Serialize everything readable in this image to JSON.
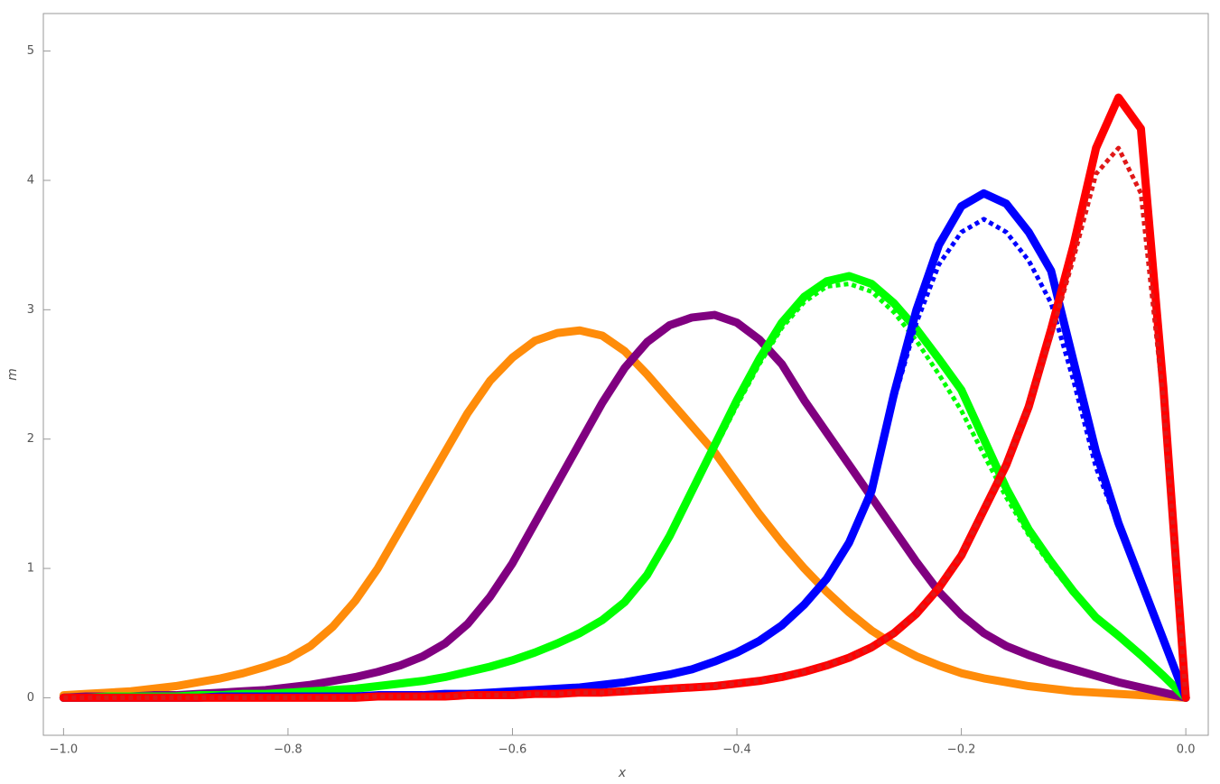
{
  "chart_data": {
    "type": "line",
    "x_label": "x",
    "y_label": "m",
    "xlim": [
      -1.018,
      0.02
    ],
    "ylim": [
      -0.29,
      5.29
    ],
    "xticks": [
      {
        "value": -1.0,
        "label": "−1.0"
      },
      {
        "value": -0.8,
        "label": "−0.8"
      },
      {
        "value": -0.6,
        "label": "−0.6"
      },
      {
        "value": -0.4,
        "label": "−0.4"
      },
      {
        "value": -0.2,
        "label": "−0.2"
      },
      {
        "value": 0.0,
        "label": "0.0"
      }
    ],
    "yticks": [
      0,
      1,
      2,
      3,
      4,
      5
    ],
    "x": [
      -1,
      -0.98,
      -0.96,
      -0.94,
      -0.92,
      -0.9,
      -0.88,
      -0.86,
      -0.84,
      -0.82,
      -0.8,
      -0.78,
      -0.76,
      -0.74,
      -0.72,
      -0.7,
      -0.68,
      -0.66,
      -0.64,
      -0.62,
      -0.6,
      -0.58,
      -0.56,
      -0.54,
      -0.52,
      -0.5,
      -0.48,
      -0.46,
      -0.44,
      -0.42,
      -0.4,
      -0.38,
      -0.36,
      -0.34,
      -0.32,
      -0.3,
      -0.28,
      -0.26,
      -0.24,
      -0.22,
      -0.2,
      -0.18,
      -0.16,
      -0.14,
      -0.12,
      -0.1,
      -0.08,
      -0.06,
      -0.04,
      -0.02,
      0
    ],
    "series": [
      {
        "color": "#ff8c0a",
        "style": "solid",
        "values": [
          0.02,
          0.03,
          0.04,
          0.05,
          0.07,
          0.09,
          0.12,
          0.15,
          0.19,
          0.24,
          0.3,
          0.4,
          0.55,
          0.75,
          1.0,
          1.3,
          1.6,
          1.9,
          2.2,
          2.45,
          2.63,
          2.76,
          2.82,
          2.84,
          2.8,
          2.68,
          2.5,
          2.3,
          2.1,
          1.9,
          1.66,
          1.42,
          1.2,
          1.0,
          0.82,
          0.66,
          0.52,
          0.41,
          0.32,
          0.25,
          0.19,
          0.15,
          0.12,
          0.09,
          0.07,
          0.05,
          0.04,
          0.03,
          0.02,
          0.01,
          0
        ]
      },
      {
        "color": "#800080",
        "style": "solid",
        "values": [
          0,
          0.01,
          0.01,
          0.01,
          0.02,
          0.02,
          0.03,
          0.04,
          0.05,
          0.06,
          0.08,
          0.1,
          0.13,
          0.16,
          0.2,
          0.25,
          0.32,
          0.42,
          0.57,
          0.78,
          1.04,
          1.35,
          1.66,
          1.97,
          2.28,
          2.55,
          2.75,
          2.88,
          2.94,
          2.96,
          2.9,
          2.77,
          2.58,
          2.3,
          2.05,
          1.8,
          1.55,
          1.3,
          1.05,
          0.82,
          0.64,
          0.5,
          0.4,
          0.33,
          0.27,
          0.22,
          0.17,
          0.12,
          0.08,
          0.04,
          0
        ]
      },
      {
        "color": "#00ff00",
        "style": "solid",
        "values": [
          0,
          0,
          0.01,
          0.01,
          0.01,
          0.01,
          0.02,
          0.02,
          0.03,
          0.03,
          0.04,
          0.05,
          0.06,
          0.07,
          0.09,
          0.11,
          0.13,
          0.16,
          0.2,
          0.24,
          0.29,
          0.35,
          0.42,
          0.5,
          0.6,
          0.74,
          0.95,
          1.25,
          1.6,
          1.95,
          2.3,
          2.62,
          2.9,
          3.1,
          3.22,
          3.26,
          3.2,
          3.05,
          2.85,
          2.62,
          2.38,
          2.0,
          1.62,
          1.3,
          1.05,
          0.82,
          0.62,
          0.48,
          0.33,
          0.17,
          0
        ]
      },
      {
        "color": "#00ff00",
        "style": "dotted",
        "values": [
          0,
          0,
          0.01,
          0.01,
          0.01,
          0.01,
          0.02,
          0.02,
          0.03,
          0.03,
          0.04,
          0.05,
          0.06,
          0.07,
          0.09,
          0.11,
          0.13,
          0.16,
          0.2,
          0.24,
          0.29,
          0.35,
          0.42,
          0.5,
          0.6,
          0.74,
          0.95,
          1.25,
          1.58,
          1.92,
          2.26,
          2.58,
          2.86,
          3.06,
          3.18,
          3.2,
          3.14,
          2.98,
          2.76,
          2.5,
          2.22,
          1.88,
          1.55,
          1.26,
          1.02,
          0.8,
          0.61,
          0.47,
          0.32,
          0.16,
          0
        ]
      },
      {
        "color": "#0000ff",
        "style": "solid",
        "values": [
          0,
          0,
          0,
          0,
          0,
          0,
          0,
          0.01,
          0.01,
          0.01,
          0.01,
          0.01,
          0.01,
          0.01,
          0.02,
          0.02,
          0.02,
          0.03,
          0.03,
          0.04,
          0.05,
          0.06,
          0.07,
          0.08,
          0.1,
          0.12,
          0.15,
          0.18,
          0.22,
          0.28,
          0.35,
          0.44,
          0.56,
          0.72,
          0.92,
          1.2,
          1.6,
          2.35,
          3.0,
          3.5,
          3.8,
          3.9,
          3.82,
          3.6,
          3.3,
          2.6,
          1.9,
          1.35,
          0.9,
          0.45,
          0
        ]
      },
      {
        "color": "#0000ff",
        "style": "dotted",
        "values": [
          0,
          0,
          0,
          0,
          0,
          0,
          0,
          0.01,
          0.01,
          0.01,
          0.01,
          0.01,
          0.01,
          0.01,
          0.02,
          0.02,
          0.02,
          0.03,
          0.03,
          0.04,
          0.05,
          0.06,
          0.07,
          0.08,
          0.1,
          0.12,
          0.15,
          0.18,
          0.22,
          0.28,
          0.35,
          0.44,
          0.56,
          0.72,
          0.92,
          1.2,
          1.6,
          2.3,
          2.9,
          3.35,
          3.6,
          3.7,
          3.6,
          3.38,
          3.05,
          2.45,
          1.78,
          1.33,
          0.88,
          0.44,
          0
        ]
      },
      {
        "color": "#ff0000",
        "style": "solid",
        "values": [
          0,
          0,
          0,
          0,
          0,
          0,
          0,
          0,
          0,
          0,
          0,
          0,
          0,
          0,
          0.01,
          0.01,
          0.01,
          0.01,
          0.02,
          0.02,
          0.02,
          0.03,
          0.03,
          0.04,
          0.04,
          0.05,
          0.06,
          0.07,
          0.08,
          0.09,
          0.11,
          0.13,
          0.16,
          0.2,
          0.25,
          0.31,
          0.39,
          0.5,
          0.65,
          0.85,
          1.1,
          1.45,
          1.8,
          2.25,
          2.85,
          3.5,
          4.25,
          4.64,
          4.4,
          2.4,
          0
        ]
      },
      {
        "color": "#e01818",
        "style": "dotted",
        "values": [
          0,
          0,
          0,
          0,
          0,
          0,
          0,
          0,
          0,
          0,
          0,
          0,
          0,
          0,
          0.01,
          0.01,
          0.01,
          0.01,
          0.02,
          0.02,
          0.02,
          0.03,
          0.03,
          0.04,
          0.04,
          0.05,
          0.06,
          0.07,
          0.08,
          0.09,
          0.11,
          0.13,
          0.16,
          0.2,
          0.25,
          0.31,
          0.39,
          0.5,
          0.65,
          0.85,
          1.1,
          1.45,
          1.8,
          2.25,
          2.8,
          3.4,
          4.05,
          4.25,
          3.9,
          2.3,
          0
        ]
      }
    ]
  }
}
